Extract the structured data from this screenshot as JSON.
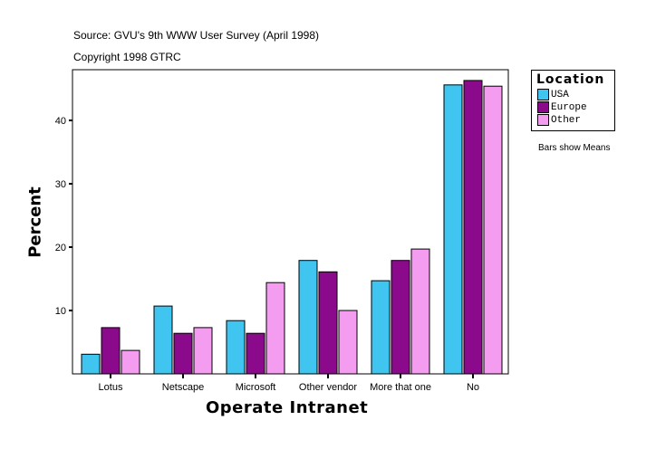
{
  "chart_data": {
    "type": "bar",
    "subtitle_lines": [
      "Source: GVU's 9th WWW User Survey (April 1998)",
      "Copyright 1998 GTRC"
    ],
    "xlabel": "Operate Intranet",
    "ylabel": "Percent",
    "categories": [
      "Lotus",
      "Netscape",
      "Microsoft",
      "Other vendor",
      "More that one",
      "No"
    ],
    "ylim": [
      0,
      48
    ],
    "yticks": [
      10,
      20,
      30,
      40
    ],
    "grid": false,
    "legend": {
      "title": "Location",
      "placement": "right"
    },
    "note": "Bars show Means",
    "series": [
      {
        "name": "USA",
        "color": "#40C4F0",
        "values": [
          3.1,
          10.7,
          8.4,
          17.9,
          14.7,
          45.6
        ]
      },
      {
        "name": "Europe",
        "color": "#8B0A8B",
        "values": [
          7.3,
          6.4,
          6.4,
          16.1,
          17.9,
          46.3
        ]
      },
      {
        "name": "Other",
        "color": "#F49CF0",
        "values": [
          3.7,
          7.3,
          14.4,
          10.0,
          19.7,
          45.4
        ]
      }
    ]
  }
}
